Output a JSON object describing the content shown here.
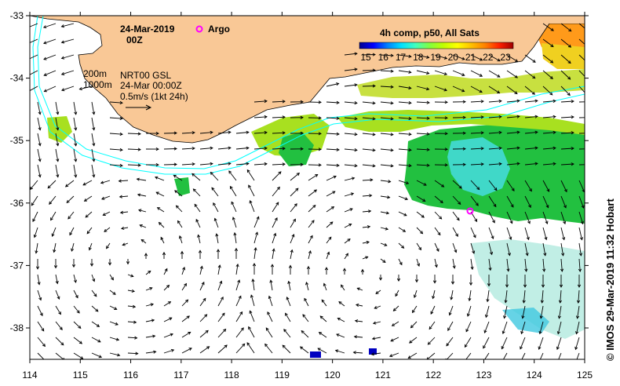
{
  "title": {
    "date": "24-Mar-2019",
    "hour": "00Z"
  },
  "legend": {
    "argo_label": "Argo",
    "argo_color": "#ff00ff",
    "isobaths": [
      "200m",
      "1000m"
    ],
    "product_line1": "NRT00 GSL",
    "product_line2": "24-Mar 00:00Z",
    "scale_text": "0.5m/s (1kt 24h)"
  },
  "colorbar": {
    "title": "4h comp, p50, All Sats",
    "ticks": [
      "15",
      "16",
      "17",
      "18",
      "19",
      "20",
      "21",
      "22",
      "23"
    ],
    "colors": [
      "#00008f",
      "#0000ff",
      "#0080ff",
      "#00e0ff",
      "#40ffbf",
      "#80ff40",
      "#c0ff00",
      "#ffff00",
      "#ffc000",
      "#ff8000",
      "#ff2000",
      "#9f0000"
    ]
  },
  "axes": {
    "lon_ticks": [
      "114",
      "115",
      "116",
      "117",
      "118",
      "119",
      "120",
      "121",
      "122",
      "123",
      "124",
      "125"
    ],
    "lat_ticks": [
      "-33",
      "-34",
      "-35",
      "-36",
      "-37",
      "-38"
    ]
  },
  "credit": "© IMOS 29-Mar-2019 11:32 Hobart",
  "colors": {
    "land": "#f9c896",
    "isobath": "#00ffff",
    "sst_green": "#22c040",
    "sst_lime": "#a8e020",
    "sst_cyan": "#40d8c8"
  }
}
